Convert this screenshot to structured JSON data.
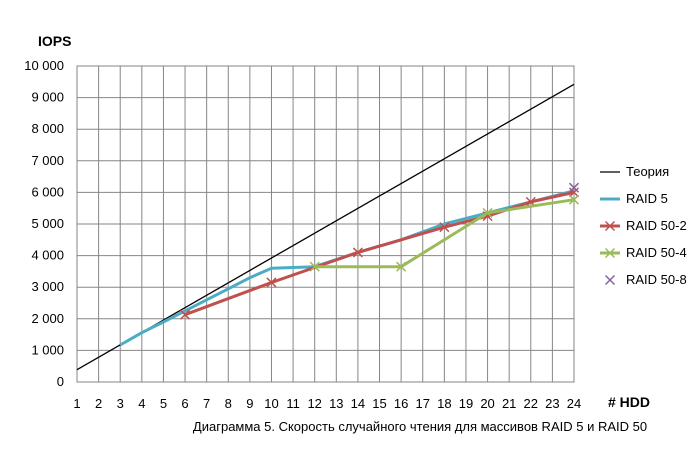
{
  "chart_data": {
    "type": "line",
    "title": "",
    "caption": "Диаграмма 5. Скорость случайного чтения для массивов RAID 5 и RAID 50",
    "ylabel": "IOPS",
    "xlabel": "# HDD",
    "xlim": [
      1,
      24
    ],
    "ylim": [
      0,
      10000
    ],
    "xticks": [
      "1",
      "2",
      "3",
      "4",
      "5",
      "6",
      "7",
      "8",
      "9",
      "10",
      "11",
      "12",
      "13",
      "14",
      "15",
      "16",
      "17",
      "18",
      "19",
      "20",
      "21",
      "22",
      "23",
      "24"
    ],
    "yticks": [
      "0",
      "1 000",
      "2 000",
      "3 000",
      "4 000",
      "5 000",
      "6 000",
      "7 000",
      "8 000",
      "9 000",
      "10 000"
    ],
    "grid": true,
    "legend_position": "right",
    "series": [
      {
        "name": "Теория",
        "color": "#000000",
        "marker": "none",
        "points": [
          [
            1,
            390
          ],
          [
            24,
            9420
          ]
        ]
      },
      {
        "name": "RAID 5",
        "color": "#4bacc6",
        "marker": "none",
        "points": [
          [
            3,
            1170
          ],
          [
            4,
            1560
          ],
          [
            5,
            1900
          ],
          [
            6,
            2250
          ],
          [
            7,
            2600
          ],
          [
            8,
            2950
          ],
          [
            9,
            3300
          ],
          [
            10,
            3600
          ],
          [
            12,
            3650
          ],
          [
            14,
            4100
          ],
          [
            16,
            4500
          ],
          [
            18,
            5000
          ],
          [
            20,
            5350
          ],
          [
            22,
            5700
          ],
          [
            24,
            6050
          ]
        ]
      },
      {
        "name": "RAID 50-2",
        "color": "#c0504d",
        "marker": "x",
        "points": [
          [
            6,
            2130
          ],
          [
            10,
            3150
          ],
          [
            14,
            4100
          ],
          [
            18,
            4900
          ],
          [
            20,
            5250
          ],
          [
            22,
            5700
          ],
          [
            24,
            6000
          ]
        ]
      },
      {
        "name": "RAID 50-4",
        "color": "#9bbb59",
        "marker": "x",
        "points": [
          [
            12,
            3650
          ],
          [
            16,
            3650
          ],
          [
            20,
            5350
          ],
          [
            24,
            5770
          ]
        ]
      },
      {
        "name": "RAID 50-8",
        "color": "#8064a2",
        "marker": "x",
        "points": [
          [
            24,
            6150
          ]
        ]
      }
    ]
  }
}
